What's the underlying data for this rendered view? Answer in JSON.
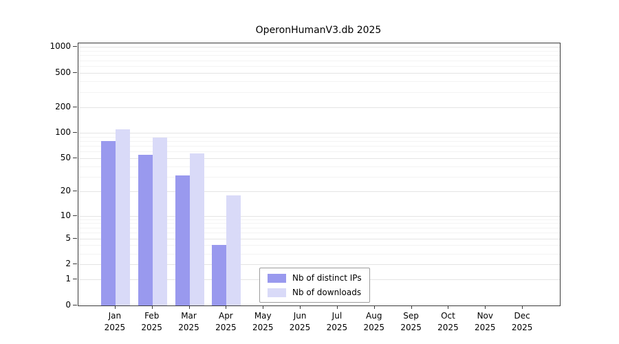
{
  "title": "OperonHumanV3.db 2025",
  "chart_data": {
    "type": "bar",
    "title": "OperonHumanV3.db 2025",
    "categories": [
      "Jan",
      "Feb",
      "Mar",
      "Apr",
      "May",
      "Jun",
      "Jul",
      "Aug",
      "Sep",
      "Oct",
      "Nov",
      "Dec"
    ],
    "year_label": "2025",
    "series": [
      {
        "name": "Nb of distinct IPs",
        "color": "#9999ee",
        "values": [
          80,
          55,
          31,
          4,
          0,
          0,
          0,
          0,
          0,
          0,
          0,
          0
        ]
      },
      {
        "name": "Nb of downloads",
        "color": "#d9daf8",
        "values": [
          110,
          88,
          57,
          18,
          0,
          0,
          0,
          0,
          0,
          0,
          0,
          0
        ]
      }
    ],
    "yscale": "symlog",
    "yticks": [
      0,
      1,
      2,
      5,
      10,
      20,
      50,
      100,
      200,
      500,
      1000
    ],
    "minor_yticks": [
      3,
      4,
      6,
      7,
      8,
      9,
      30,
      40,
      60,
      70,
      80,
      90,
      300,
      400,
      600,
      700,
      800,
      900
    ],
    "ylim": [
      0,
      1100
    ],
    "xlabel": "",
    "ylabel": "",
    "grid": "on",
    "legend_position": "inside-bottom-center"
  }
}
